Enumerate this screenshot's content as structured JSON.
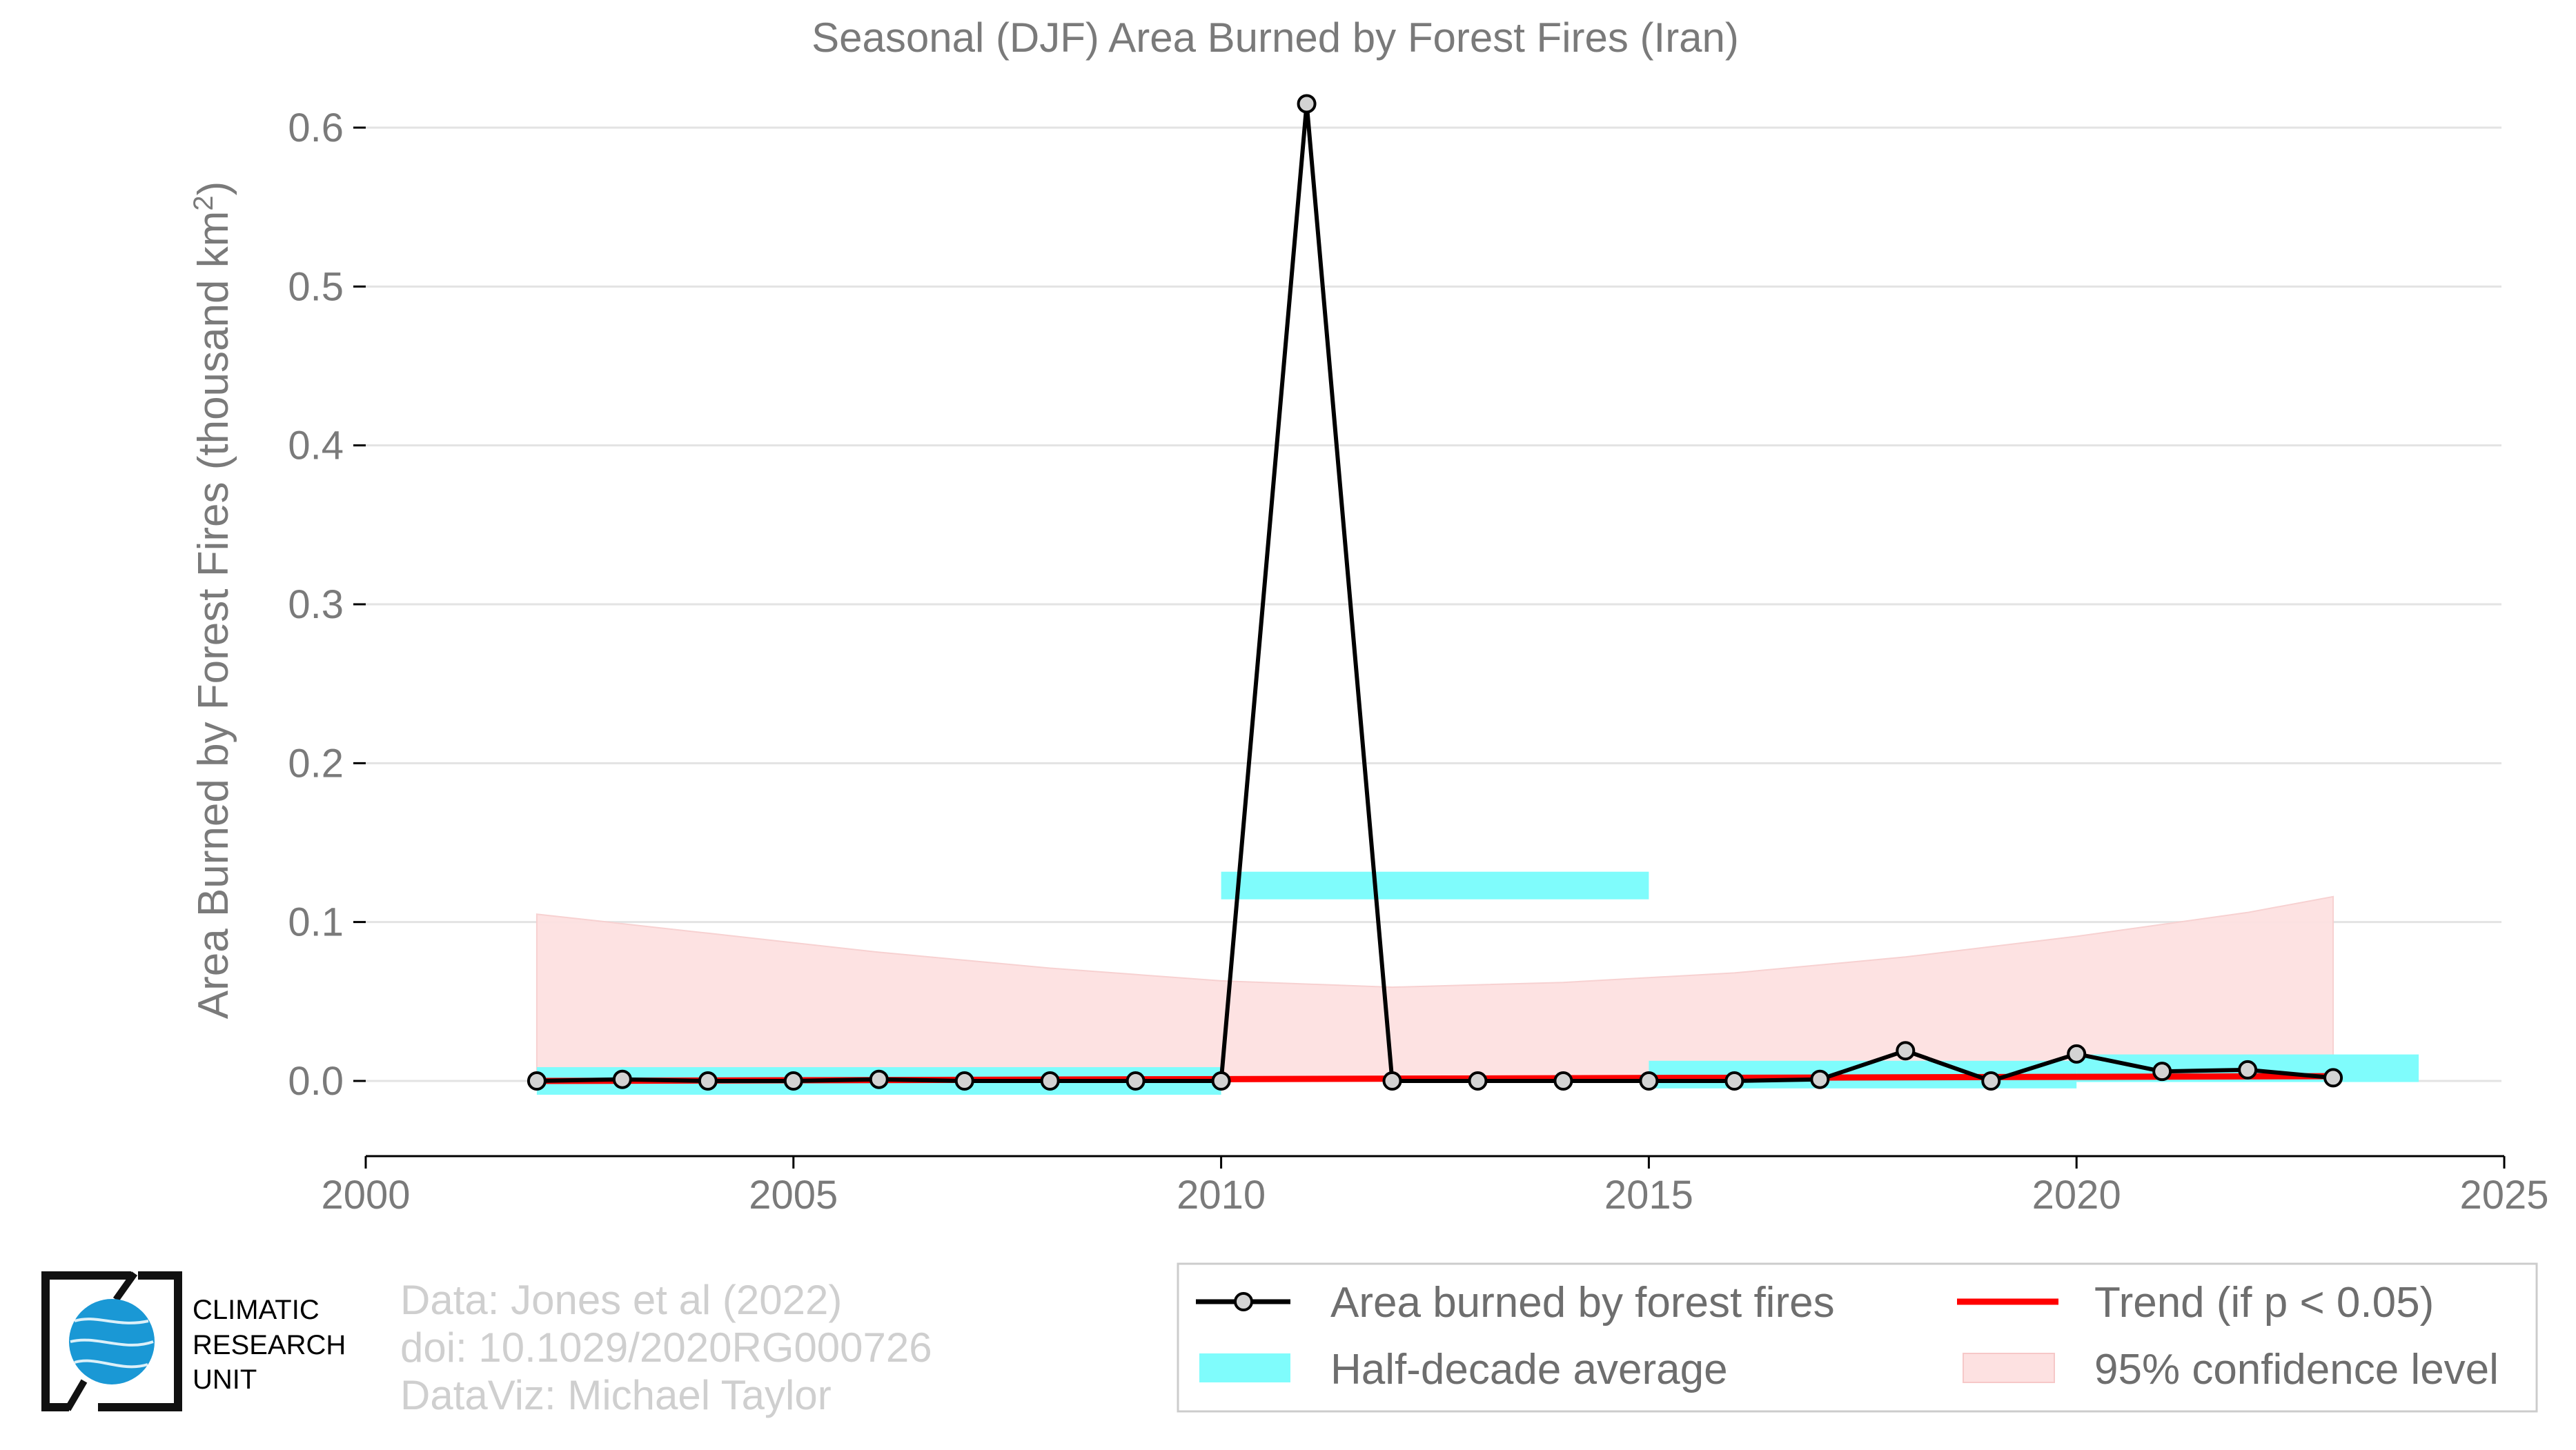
{
  "chart_data": {
    "type": "line",
    "title": "Seasonal (DJF) Area Burned by Forest Fires (Iran)",
    "ylabel": "Area Burned by Forest Fires (thousand km",
    "ylabel_sup": "2",
    "ylabel_close": ")",
    "xlim": [
      2000,
      2025
    ],
    "ylim": [
      -0.05,
      0.62
    ],
    "x_ticks": [
      2000,
      2005,
      2010,
      2015,
      2020,
      2025
    ],
    "x_tick_labels": [
      "2000",
      "2005",
      "2010",
      "2015",
      "2020",
      "2025"
    ],
    "y_ticks": [
      0.0,
      0.1,
      0.2,
      0.3,
      0.4,
      0.5,
      0.6
    ],
    "y_tick_labels": [
      "0.0",
      "0.1",
      "0.2",
      "0.3",
      "0.4",
      "0.5",
      "0.6"
    ],
    "grid": "horizontal",
    "series": [
      {
        "name": "Area burned by forest fires",
        "color": "#000000",
        "marker_fill": "#d3d3d3",
        "x": [
          2002,
          2003,
          2004,
          2005,
          2006,
          2007,
          2008,
          2009,
          2010,
          2011,
          2012,
          2013,
          2014,
          2015,
          2016,
          2017,
          2018,
          2019,
          2020,
          2021,
          2022,
          2023
        ],
        "y": [
          0.0,
          0.001,
          0.0,
          0.0,
          0.001,
          0.0,
          0.0,
          0.0,
          0.0,
          0.615,
          0.0,
          0.0,
          0.0,
          0.0,
          0.0,
          0.001,
          0.019,
          0.0,
          0.017,
          0.006,
          0.007,
          0.002
        ]
      }
    ],
    "half_decade_average": {
      "name": "Half-decade average",
      "color": "#7ffcfc",
      "segments": [
        {
          "x0": 2002,
          "x1": 2010,
          "y": 0.0
        },
        {
          "x0": 2010,
          "x1": 2015,
          "y": 0.123
        },
        {
          "x0": 2015,
          "x1": 2020,
          "y": 0.004
        },
        {
          "x0": 2020,
          "x1": 2024,
          "y": 0.008
        }
      ]
    },
    "trend": {
      "name": "Trend (if p < 0.05)",
      "color": "#ff0000",
      "x": [
        2002,
        2023
      ],
      "y": [
        0.0,
        0.003
      ]
    },
    "confidence_band": {
      "name": "95% confidence level",
      "color": "#fde1e1",
      "x": [
        2002,
        2004,
        2006,
        2008,
        2010,
        2012,
        2014,
        2016,
        2018,
        2020,
        2022,
        2023
      ],
      "upper": [
        0.105,
        0.093,
        0.081,
        0.071,
        0.063,
        0.059,
        0.062,
        0.068,
        0.078,
        0.091,
        0.106,
        0.116
      ],
      "lower": [
        0.0,
        0.0,
        0.0,
        0.0,
        0.0,
        0.0,
        0.0,
        0.0,
        0.0,
        0.0,
        0.0,
        0.0
      ]
    },
    "legend": {
      "placement": "bottom-right",
      "items": [
        {
          "label": "Area burned by forest fires",
          "kind": "line-marker",
          "color": "#000000"
        },
        {
          "label": "Trend (if p < 0.05)",
          "kind": "line",
          "color": "#ff0000"
        },
        {
          "label": "Half-decade average",
          "kind": "patch",
          "color": "#7ffcfc"
        },
        {
          "label": "95% confidence level",
          "kind": "patch",
          "color": "#fde1e1"
        }
      ]
    }
  },
  "credits": {
    "line1": "Data: Jones et al (2022)",
    "line2": "doi: 10.1029/2020RG000726",
    "line3": "DataViz: Michael Taylor"
  },
  "logo": {
    "line1": "CLIMATIC",
    "line2": "RESEARCH",
    "line3": "UNIT",
    "globe_color": "#1a98d5"
  }
}
